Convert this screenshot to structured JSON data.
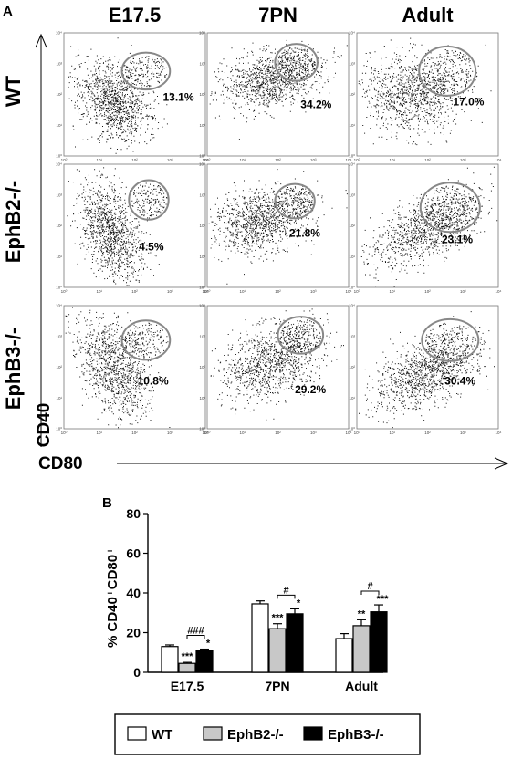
{
  "panel_a_label": "A",
  "panel_b_label": "B",
  "columns": [
    "E17.5",
    "7PN",
    "Adult"
  ],
  "rows": [
    "WT",
    "EphB2-/-",
    "EphB3-/-"
  ],
  "y_axis_label": "CD40",
  "x_axis_label": "CD80",
  "chart_data": [
    {
      "type": "scatter",
      "panel": "A",
      "x_scale": "log",
      "y_scale": "log",
      "tick_labels": [
        "10⁰",
        "10¹",
        "10²",
        "10³",
        "10⁴"
      ],
      "gated_percentages": {
        "WT": {
          "E17.5": "13.1%",
          "7PN": "34.2%",
          "Adult": "17.0%"
        },
        "EphB2-/-": {
          "E17.5": "4.5%",
          "7PN": "21.8%",
          "Adult": "23.1%"
        },
        "EphB3-/-": {
          "E17.5": "10.8%",
          "7PN": "29.2%",
          "Adult": "30.4%"
        }
      }
    },
    {
      "type": "bar",
      "panel": "B",
      "categories": [
        "E17.5",
        "7PN",
        "Adult"
      ],
      "ylabel": "% CD40⁺CD80⁺",
      "ylim": [
        0,
        80
      ],
      "yticks": [
        "0",
        "20",
        "40",
        "60",
        "80"
      ],
      "series": [
        {
          "name": "WT",
          "color": "#ffffff",
          "values": [
            13,
            34.5,
            17
          ],
          "errors": [
            0.8,
            1.5,
            2.5
          ]
        },
        {
          "name": "EphB2-/-",
          "color": "#c8c8c8",
          "values": [
            4.5,
            22,
            23.5
          ],
          "errors": [
            0.5,
            2.5,
            3
          ]
        },
        {
          "name": "EphB3-/-",
          "color": "#000000",
          "values": [
            11,
            29.5,
            30.5
          ],
          "errors": [
            0.7,
            2.5,
            3.5
          ]
        }
      ],
      "significance": [
        [
          "***",
          "*"
        ],
        [
          "***",
          "*"
        ],
        [
          "**",
          "***"
        ]
      ],
      "brackets": [
        "###",
        "#",
        "#"
      ],
      "legend": [
        "WT",
        "EphB2-/-",
        "EphB3-/-"
      ]
    }
  ]
}
